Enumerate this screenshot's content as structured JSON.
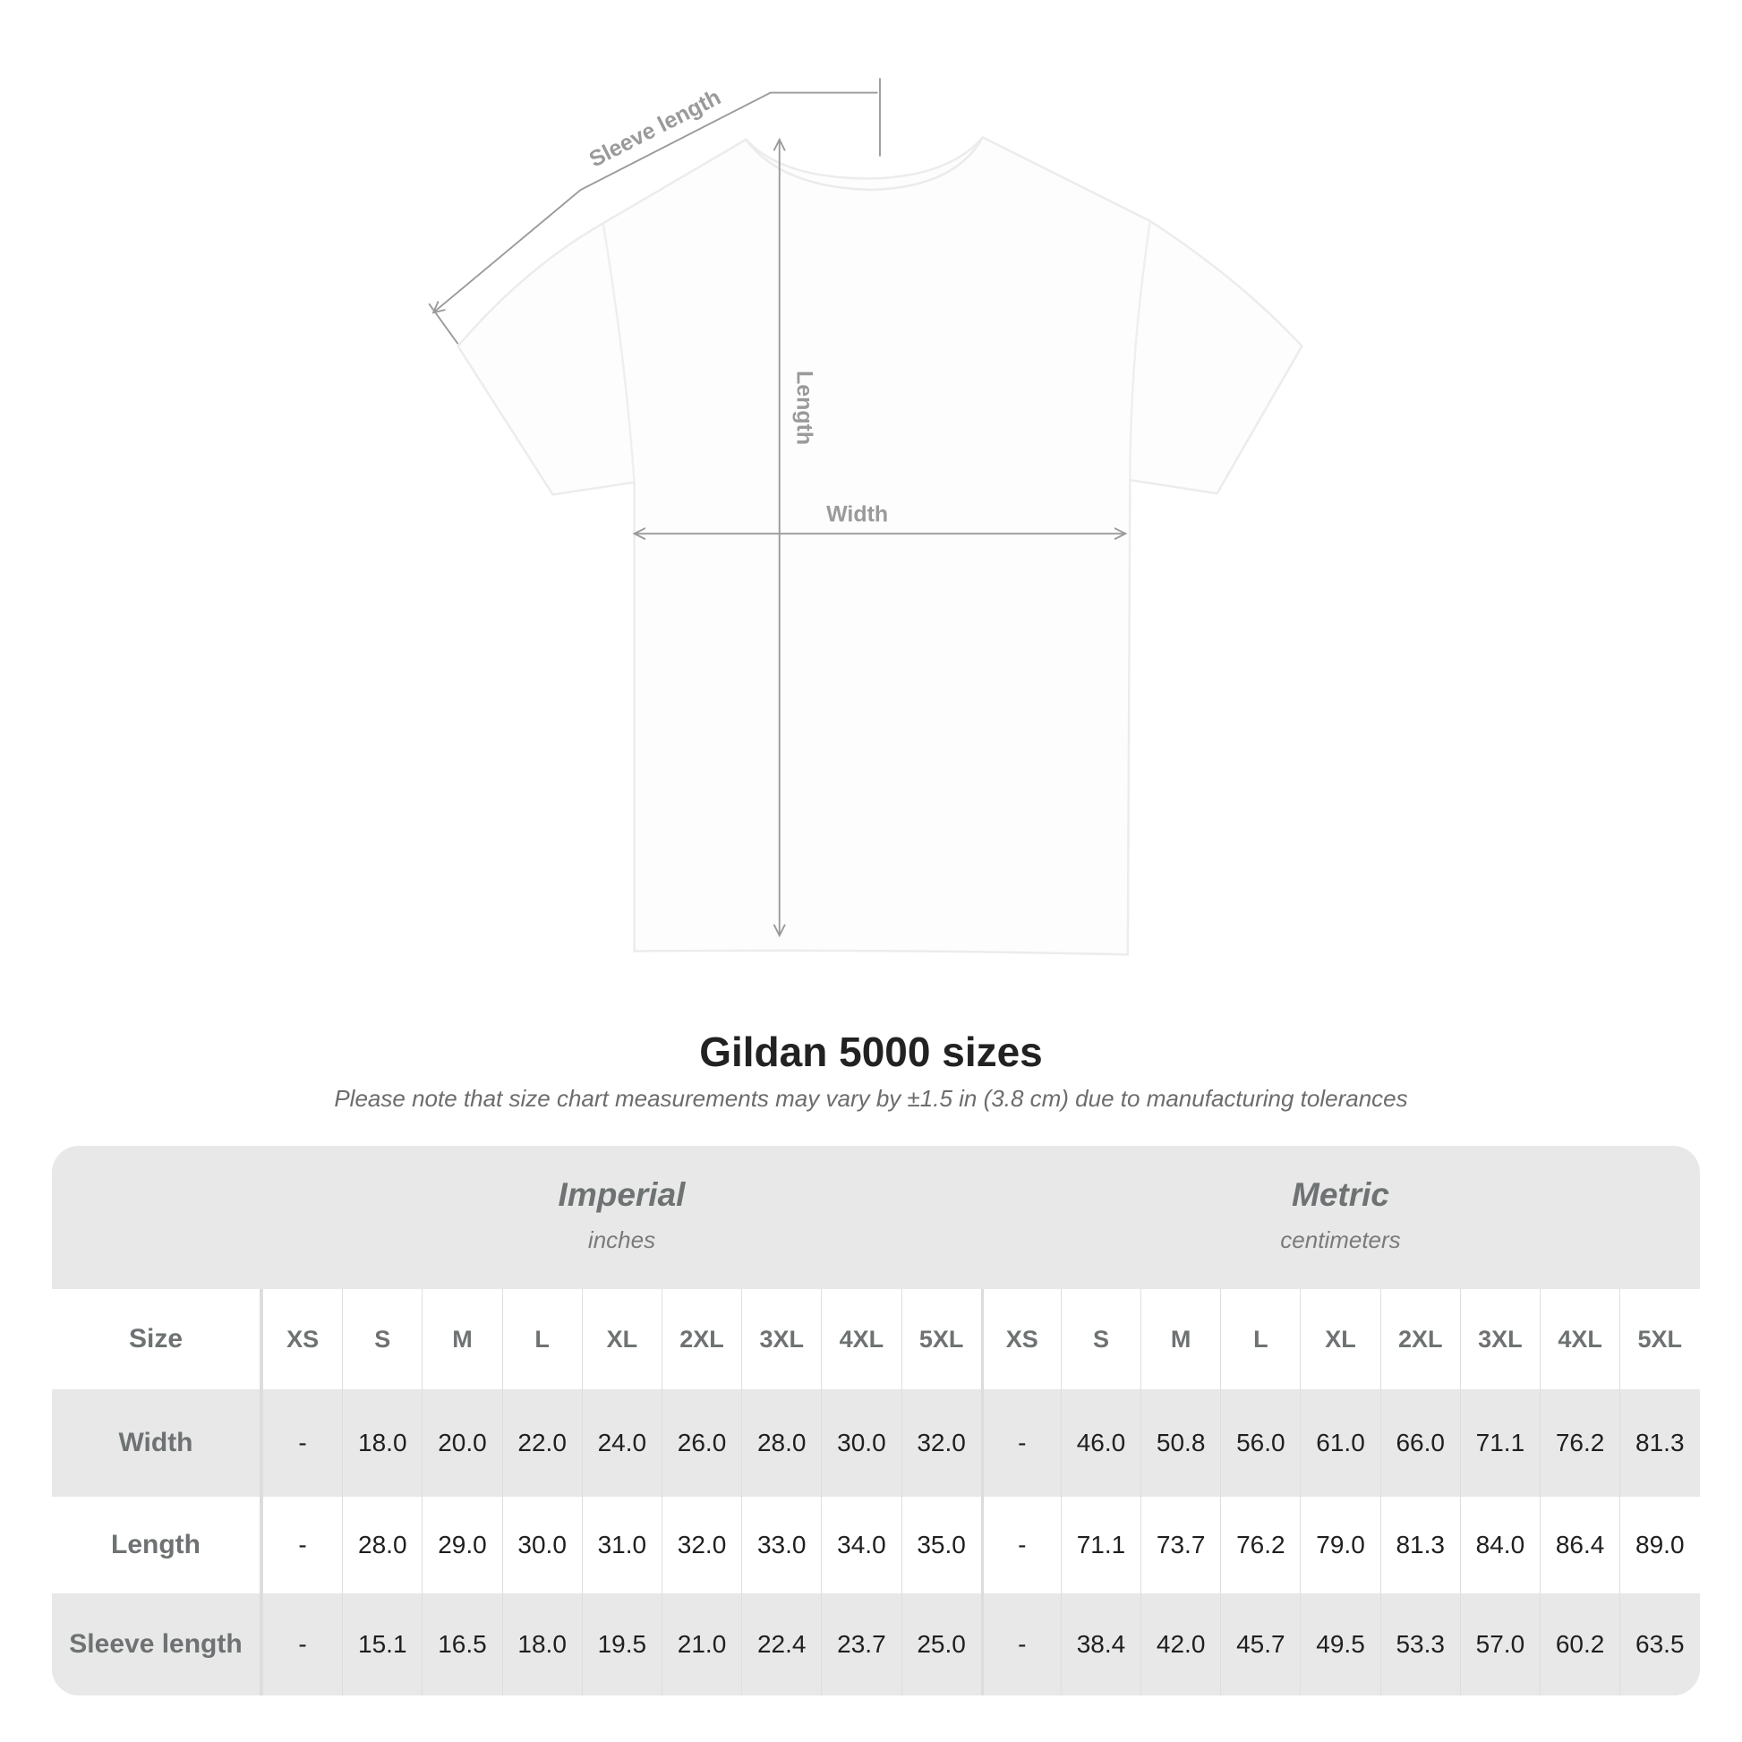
{
  "diagram": {
    "sleeve_label": "Sleeve length",
    "length_label": "Length",
    "width_label": "Width"
  },
  "title": "Gildan 5000 sizes",
  "note": "Please note that size chart measurements may vary by ±1.5 in (3.8 cm) due to manufacturing tolerances",
  "table": {
    "imperial": {
      "name": "Imperial",
      "unit": "inches"
    },
    "metric": {
      "name": "Metric",
      "unit": "centimeters"
    },
    "size_label": "Size",
    "sizes": [
      "XS",
      "S",
      "M",
      "L",
      "XL",
      "2XL",
      "3XL",
      "4XL",
      "5XL"
    ],
    "rows": [
      {
        "label": "Width",
        "imperial": [
          "-",
          "18.0",
          "20.0",
          "22.0",
          "24.0",
          "26.0",
          "28.0",
          "30.0",
          "32.0"
        ],
        "metric": [
          "-",
          "46.0",
          "50.8",
          "56.0",
          "61.0",
          "66.0",
          "71.1",
          "76.2",
          "81.3"
        ]
      },
      {
        "label": "Length",
        "imperial": [
          "-",
          "28.0",
          "29.0",
          "30.0",
          "31.0",
          "32.0",
          "33.0",
          "34.0",
          "35.0"
        ],
        "metric": [
          "-",
          "71.1",
          "73.7",
          "76.2",
          "79.0",
          "81.3",
          "84.0",
          "86.4",
          "89.0"
        ]
      },
      {
        "label": "Sleeve length",
        "imperial": [
          "-",
          "15.1",
          "16.5",
          "18.0",
          "19.5",
          "21.0",
          "22.4",
          "23.7",
          "25.0"
        ],
        "metric": [
          "-",
          "38.4",
          "42.0",
          "45.7",
          "49.5",
          "53.3",
          "57.0",
          "60.2",
          "63.5"
        ]
      }
    ]
  },
  "colors": {
    "table_grey": "#e8e8e8",
    "header_text": "#6e7273",
    "dimension_lines": "#9a9a9a"
  }
}
